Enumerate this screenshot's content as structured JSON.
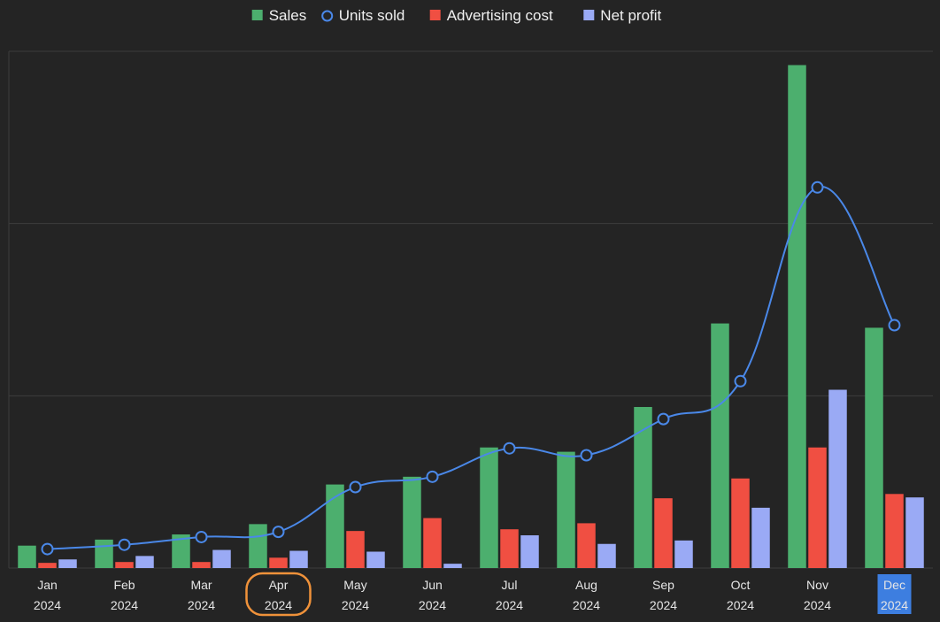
{
  "chart_data": {
    "type": "bar",
    "categories": [
      {
        "month": "Jan",
        "year": "2024"
      },
      {
        "month": "Feb",
        "year": "2024"
      },
      {
        "month": "Mar",
        "year": "2024"
      },
      {
        "month": "Apr",
        "year": "2024"
      },
      {
        "month": "May",
        "year": "2024"
      },
      {
        "month": "Jun",
        "year": "2024"
      },
      {
        "month": "Jul",
        "year": "2024"
      },
      {
        "month": "Aug",
        "year": "2024"
      },
      {
        "month": "Sep",
        "year": "2024"
      },
      {
        "month": "Oct",
        "year": "2024"
      },
      {
        "month": "Nov",
        "year": "2024"
      },
      {
        "month": "Dec",
        "year": "2024"
      }
    ],
    "series": [
      {
        "name": "Sales",
        "kind": "bar",
        "color": "#4caf6e",
        "values": [
          26,
          33,
          39,
          51,
          97,
          106,
          140,
          135,
          187,
          284,
          584,
          279
        ]
      },
      {
        "name": "Units sold",
        "kind": "line",
        "color": "#4a88e8",
        "values": [
          22,
          27,
          36,
          42,
          94,
          106,
          139,
          131,
          173,
          217,
          442,
          282
        ]
      },
      {
        "name": "Advertising cost",
        "kind": "bar",
        "color": "#f04f42",
        "values": [
          6,
          7,
          7,
          12,
          43,
          58,
          45,
          52,
          81,
          104,
          140,
          86
        ]
      },
      {
        "name": "Net profit",
        "kind": "bar",
        "color": "#9aaaf5",
        "values": [
          10,
          14,
          21,
          20,
          19,
          5,
          38,
          28,
          32,
          70,
          207,
          82
        ]
      }
    ],
    "ylim": [
      0,
      600
    ],
    "gridlines": [
      0,
      200,
      400,
      600
    ],
    "grid": true,
    "legend_position": "top-center",
    "highlighted_categories": {
      "circled": "Apr",
      "selected": "Dec"
    },
    "colors": {
      "background": "#242424",
      "grid": "#3c3c3c",
      "circle_highlight": "#f0923a",
      "selected_highlight": "#3d7ee0"
    }
  }
}
